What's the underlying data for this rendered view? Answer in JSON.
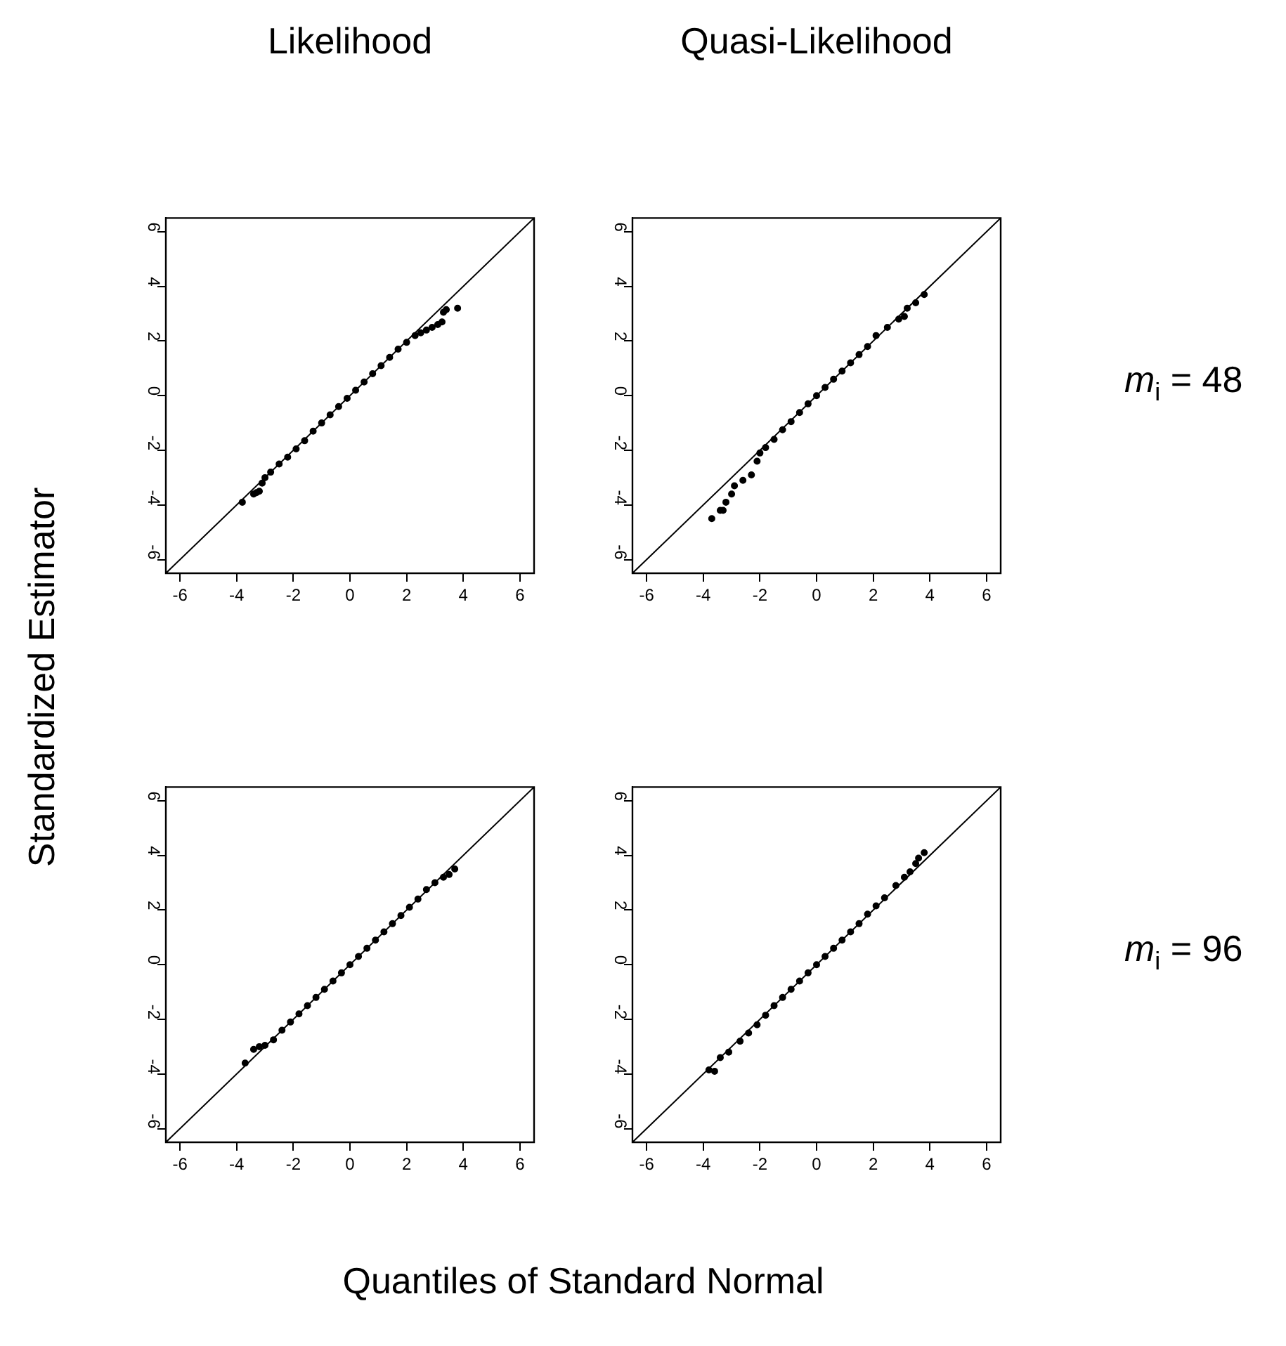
{
  "chart_data": [
    {
      "type": "scatter",
      "title": "Likelihood",
      "ylabel": "Standardized Estimator",
      "xlim": [
        -6.5,
        6.5
      ],
      "ylim": [
        -6.5,
        6.5
      ],
      "xticks": [
        -6,
        -4,
        -2,
        0,
        2,
        4,
        6
      ],
      "yticks": [
        -6,
        -4,
        -2,
        0,
        2,
        4,
        6
      ],
      "series": [
        {
          "marker": "circle",
          "color": "#000000",
          "x": [
            -3.8,
            -3.4,
            -3.3,
            -3.2,
            -3.1,
            -3.0,
            -2.8,
            -2.5,
            -2.2,
            -1.9,
            -1.6,
            -1.3,
            -1.0,
            -0.7,
            -0.4,
            -0.1,
            0.2,
            0.5,
            0.8,
            1.1,
            1.4,
            1.7,
            2.0,
            2.3,
            2.5,
            2.7,
            2.9,
            3.1,
            3.25,
            3.3,
            3.4,
            3.8
          ],
          "values": [
            -3.9,
            -3.6,
            -3.55,
            -3.5,
            -3.2,
            -3.0,
            -2.8,
            -2.5,
            -2.25,
            -1.95,
            -1.65,
            -1.3,
            -1.0,
            -0.7,
            -0.4,
            -0.1,
            0.2,
            0.5,
            0.8,
            1.1,
            1.4,
            1.7,
            1.95,
            2.2,
            2.3,
            2.4,
            2.5,
            2.6,
            2.7,
            3.05,
            3.15,
            3.2
          ]
        },
        {
          "type": "line",
          "marker": "none",
          "color": "#000000",
          "x": [
            -6.5,
            6.5
          ],
          "values": [
            -6.5,
            6.5
          ]
        }
      ]
    },
    {
      "type": "scatter",
      "title": "Quasi-Likelihood",
      "annotations": [
        "m$_{i}$ = 48"
      ],
      "xlim": [
        -6.5,
        6.5
      ],
      "ylim": [
        -6.5,
        6.5
      ],
      "xticks": [
        -6,
        -4,
        -2,
        0,
        2,
        4,
        6
      ],
      "yticks": [
        -6,
        -4,
        -2,
        0,
        2,
        4,
        6
      ],
      "series": [
        {
          "marker": "circle",
          "color": "#000000",
          "x": [
            -3.7,
            -3.4,
            -3.3,
            -3.2,
            -3.0,
            -2.9,
            -2.6,
            -2.3,
            -2.1,
            -2.0,
            -1.8,
            -1.5,
            -1.2,
            -0.9,
            -0.6,
            -0.3,
            0,
            0.3,
            0.6,
            0.9,
            1.2,
            1.5,
            1.8,
            2.1,
            2.5,
            2.9,
            3.1,
            3.2,
            3.5,
            3.8
          ],
          "values": [
            -4.5,
            -4.2,
            -4.2,
            -3.9,
            -3.6,
            -3.3,
            -3.1,
            -2.9,
            -2.4,
            -2.1,
            -1.9,
            -1.6,
            -1.25,
            -0.95,
            -0.62,
            -0.3,
            0,
            0.3,
            0.6,
            0.9,
            1.2,
            1.5,
            1.8,
            2.2,
            2.5,
            2.8,
            2.9,
            3.2,
            3.4,
            3.7
          ]
        },
        {
          "type": "line",
          "marker": "none",
          "color": "#000000",
          "x": [
            -6.5,
            6.5
          ],
          "values": [
            -6.5,
            6.5
          ]
        }
      ]
    },
    {
      "type": "scatter",
      "xlabel": "Quantiles of Standard Normal",
      "xlim": [
        -6.5,
        6.5
      ],
      "ylim": [
        -6.5,
        6.5
      ],
      "xticks": [
        -6,
        -4,
        -2,
        0,
        2,
        4,
        6
      ],
      "yticks": [
        -6,
        -4,
        -2,
        0,
        2,
        4,
        6
      ],
      "series": [
        {
          "marker": "circle",
          "color": "#000000",
          "x": [
            -3.7,
            -3.4,
            -3.2,
            -3.0,
            -2.7,
            -2.4,
            -2.1,
            -1.8,
            -1.5,
            -1.2,
            -0.9,
            -0.6,
            -0.3,
            0,
            0.3,
            0.6,
            0.9,
            1.2,
            1.5,
            1.8,
            2.1,
            2.4,
            2.7,
            3.0,
            3.3,
            3.5,
            3.7
          ],
          "values": [
            -3.6,
            -3.1,
            -3.0,
            -2.95,
            -2.75,
            -2.4,
            -2.1,
            -1.8,
            -1.5,
            -1.2,
            -0.9,
            -0.6,
            -0.3,
            0,
            0.3,
            0.6,
            0.9,
            1.2,
            1.5,
            1.8,
            2.1,
            2.4,
            2.75,
            3.0,
            3.2,
            3.3,
            3.5
          ]
        },
        {
          "type": "line",
          "marker": "none",
          "color": "#000000",
          "x": [
            -6.5,
            6.5
          ],
          "values": [
            -6.5,
            6.5
          ]
        }
      ]
    },
    {
      "type": "scatter",
      "annotations": [
        "m$_{i}$ = 96"
      ],
      "xlim": [
        -6.5,
        6.5
      ],
      "ylim": [
        -6.5,
        6.5
      ],
      "xticks": [
        -6,
        -4,
        -2,
        0,
        2,
        4,
        6
      ],
      "yticks": [
        -6,
        -4,
        -2,
        0,
        2,
        4,
        6
      ],
      "series": [
        {
          "marker": "circle",
          "color": "#000000",
          "x": [
            -3.8,
            -3.6,
            -3.4,
            -3.1,
            -2.7,
            -2.4,
            -2.1,
            -1.8,
            -1.5,
            -1.2,
            -0.9,
            -0.6,
            -0.3,
            0,
            0.3,
            0.6,
            0.9,
            1.2,
            1.5,
            1.8,
            2.1,
            2.4,
            2.8,
            3.1,
            3.3,
            3.5,
            3.6,
            3.8
          ],
          "values": [
            -3.85,
            -3.9,
            -3.4,
            -3.2,
            -2.8,
            -2.5,
            -2.2,
            -1.85,
            -1.5,
            -1.2,
            -0.9,
            -0.6,
            -0.3,
            0,
            0.3,
            0.6,
            0.9,
            1.2,
            1.5,
            1.85,
            2.15,
            2.45,
            2.9,
            3.2,
            3.4,
            3.7,
            3.9,
            4.1
          ]
        },
        {
          "type": "line",
          "marker": "none",
          "color": "#000000",
          "x": [
            -6.5,
            6.5
          ],
          "values": [
            -6.5,
            6.5
          ]
        }
      ]
    }
  ]
}
